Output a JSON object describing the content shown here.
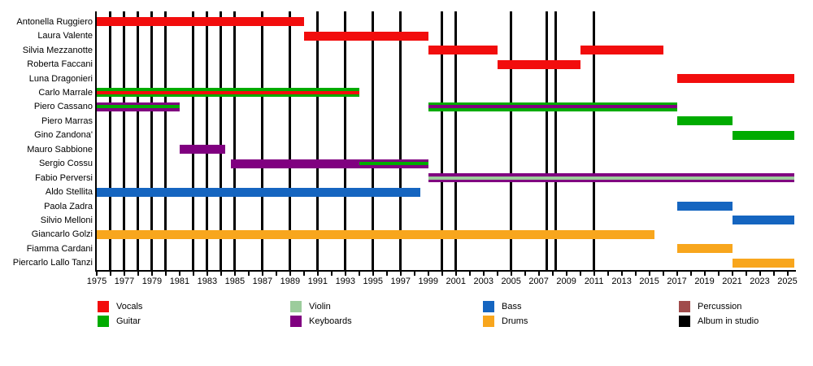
{
  "chart_data": {
    "type": "gantt_timeline",
    "x_axis": {
      "min": 1975,
      "max": 2025.5,
      "tick_min": 1975,
      "tick_max": 2025,
      "tick_step": 2,
      "minor_tick_step": 1
    },
    "colors": {
      "vocals": "#f20d0d",
      "guitar": "#00ab00",
      "violin": "#9ccc9c",
      "keyboards": "#800080",
      "bass": "#1565c0",
      "drums": "#f8a61d",
      "percussion": "#a04b4b",
      "album": "#000000"
    },
    "members": [
      {
        "name": "Antonella Ruggiero",
        "bars": [
          {
            "start": 1975,
            "end": 1990,
            "role": "vocals"
          }
        ]
      },
      {
        "name": "Laura Valente",
        "bars": [
          {
            "start": 1990,
            "end": 1999,
            "role": "vocals"
          }
        ]
      },
      {
        "name": "Silvia Mezzanotte",
        "bars": [
          {
            "start": 1999,
            "end": 2004,
            "role": "vocals"
          },
          {
            "start": 2010,
            "end": 2016,
            "role": "vocals"
          }
        ]
      },
      {
        "name": "Roberta Faccani",
        "bars": [
          {
            "start": 2004,
            "end": 2010,
            "role": "vocals"
          }
        ]
      },
      {
        "name": "Luna Dragonieri",
        "bars": [
          {
            "start": 2017,
            "end": 2025.5,
            "role": "vocals"
          }
        ]
      },
      {
        "name": "Carlo Marrale",
        "bars": [
          {
            "start": 1975,
            "end": 1994,
            "role": "guitar",
            "stripe": {
              "role": "vocals"
            }
          }
        ]
      },
      {
        "name": "Piero Cassano",
        "bars": [
          {
            "start": 1975,
            "end": 1981,
            "role": "keyboards",
            "stripe": {
              "role": "guitar"
            }
          },
          {
            "start": 1999,
            "end": 2017,
            "role": "guitar",
            "stripe": {
              "role": "keyboards"
            }
          }
        ]
      },
      {
        "name": "Piero Marras",
        "bars": [
          {
            "start": 2017,
            "end": 2021,
            "role": "guitar"
          }
        ]
      },
      {
        "name": "Gino Zandona'",
        "bars": [
          {
            "start": 2021,
            "end": 2025.5,
            "role": "guitar"
          }
        ]
      },
      {
        "name": "Mauro Sabbione",
        "bars": [
          {
            "start": 1981,
            "end": 1984.3,
            "role": "keyboards"
          }
        ]
      },
      {
        "name": "Sergio Cossu",
        "bars": [
          {
            "start": 1984.7,
            "end": 1999,
            "role": "keyboards",
            "stripe": {
              "role": "guitar",
              "start": 1994,
              "end": 1999
            }
          }
        ]
      },
      {
        "name": "Fabio Perversi",
        "bars": [
          {
            "start": 1999,
            "end": 2025.5,
            "role": "keyboards",
            "stripe": {
              "role": "violin"
            }
          }
        ]
      },
      {
        "name": "Aldo Stellita",
        "bars": [
          {
            "start": 1975,
            "end": 1998.4,
            "role": "bass"
          }
        ]
      },
      {
        "name": "Paola Zadra",
        "bars": [
          {
            "start": 2017,
            "end": 2021,
            "role": "bass"
          }
        ]
      },
      {
        "name": "Silvio Melloni",
        "bars": [
          {
            "start": 2021,
            "end": 2025.5,
            "role": "bass"
          }
        ]
      },
      {
        "name": "Giancarlo Golzi",
        "bars": [
          {
            "start": 1975,
            "end": 2015.4,
            "role": "drums"
          }
        ]
      },
      {
        "name": "Fiamma Cardani",
        "bars": [
          {
            "start": 2017,
            "end": 2021,
            "role": "drums"
          }
        ]
      },
      {
        "name": "Piercarlo Lallo Tanzi",
        "bars": [
          {
            "start": 2021,
            "end": 2025.5,
            "role": "drums"
          }
        ]
      }
    ],
    "albums_in_studio_years": [
      1976,
      1977,
      1978,
      1979,
      1980,
      1982,
      1983,
      1984,
      1985,
      1987,
      1989,
      1991,
      1993,
      1995,
      1997,
      2000,
      2001,
      2005,
      2007.6,
      2008.2,
      2011
    ],
    "legend": [
      {
        "label": "Vocals",
        "color_key": "vocals"
      },
      {
        "label": "Guitar",
        "color_key": "guitar"
      },
      {
        "label": "Violin",
        "color_key": "violin"
      },
      {
        "label": "Keyboards",
        "color_key": "keyboards"
      },
      {
        "label": "Bass",
        "color_key": "bass"
      },
      {
        "label": "Drums",
        "color_key": "drums"
      },
      {
        "label": "Percussion",
        "color_key": "percussion"
      },
      {
        "label": "Album in studio",
        "color_key": "album"
      }
    ]
  }
}
